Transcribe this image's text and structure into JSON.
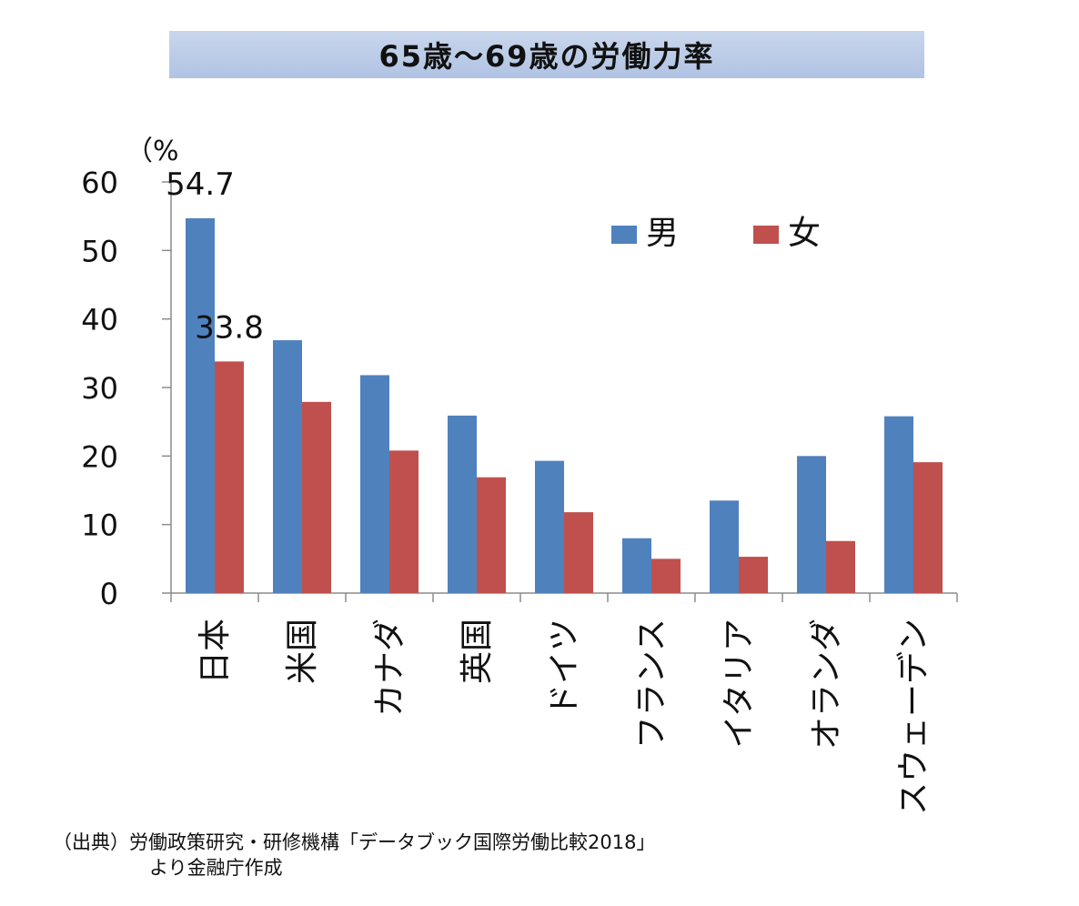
{
  "chart_data": {
    "type": "bar",
    "title": "65歳～69歳の労働力率",
    "ylabel": "（%",
    "ylim": [
      0,
      60
    ],
    "yticks": [
      0,
      10,
      20,
      30,
      40,
      50,
      60
    ],
    "categories": [
      "日本",
      "米国",
      "カナダ",
      "英国",
      "ドイツ",
      "フランス",
      "イタリア",
      "オランダ",
      "スウェーデン"
    ],
    "series": [
      {
        "name": "男",
        "color": "#4f81bd",
        "values": [
          54.7,
          36.9,
          31.8,
          25.9,
          19.3,
          8.0,
          13.5,
          20.0,
          25.8
        ]
      },
      {
        "name": "女",
        "color": "#c0504d",
        "values": [
          33.8,
          27.9,
          20.8,
          16.9,
          11.8,
          5.0,
          5.3,
          7.6,
          19.1
        ]
      }
    ],
    "data_labels": [
      {
        "series": 0,
        "index": 0,
        "text": "54.7"
      },
      {
        "series": 1,
        "index": 0,
        "text": "33.8"
      }
    ],
    "legend_position": "top-right",
    "grid": false
  },
  "source": {
    "line1": "（出典）労働政策研究・研修機構「データブック国際労働比較2018」",
    "line2": "より金融庁作成"
  }
}
